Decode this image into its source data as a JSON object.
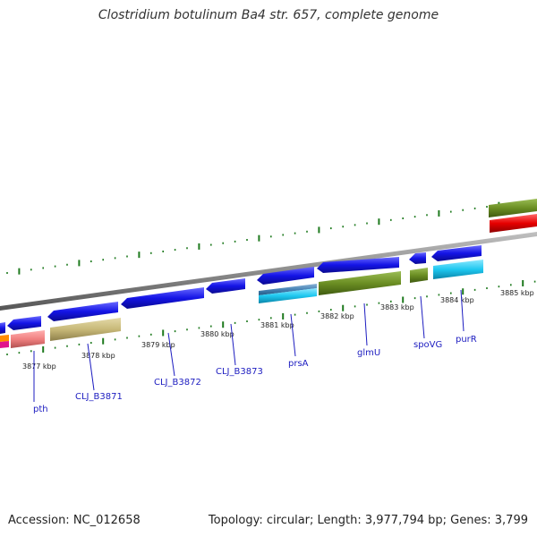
{
  "title": "Clostridium botulinum Ba4 str. 657, complete genome",
  "accession_label": "Accession: NC_012658",
  "summary_label": "Topology: circular; Length: 3,977,794 bp; Genes: 3,799",
  "colors": {
    "backbone": "#8c8c8c",
    "tick": "#1e7a1e",
    "gene_arrow": "#1414e6",
    "gene_label": "#1c1cc0",
    "cog_olive": "#6b8e23",
    "cog_khaki": "#c8b978",
    "cog_salmon": "#f08080",
    "cog_skyblue": "#1ec8f0",
    "cog_steel": "#4682b4",
    "cog_red": "#e60000",
    "cog_orange": "#ff8c00",
    "cog_magenta": "#e0148c"
  },
  "position_labels": [
    "3877 kbp",
    "3878 kbp",
    "3879 kbp",
    "3880 kbp",
    "3881 kbp",
    "3882 kbp",
    "3883 kbp",
    "3884 kbp",
    "3885 kbp"
  ],
  "gene_labels": [
    "pth",
    "CLJ_B3871",
    "CLJ_B3872",
    "CLJ_B3873",
    "prsA",
    "glmU",
    "spoVG",
    "purR"
  ]
}
